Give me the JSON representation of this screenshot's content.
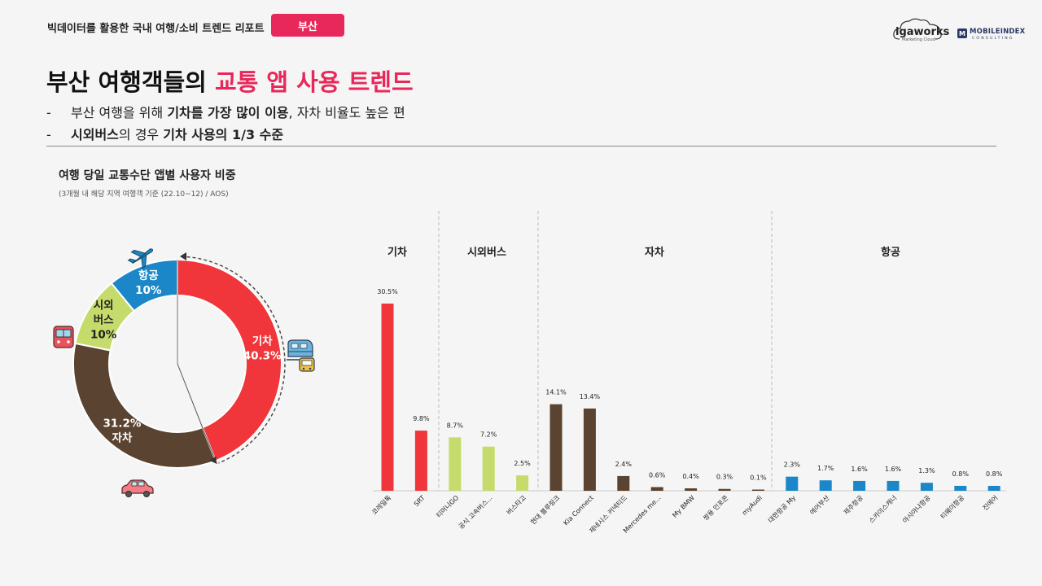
{
  "header": {
    "report_title": "빅데이터를 활용한 국내 여행/소비 트렌드 리포트",
    "city_badge": "부산",
    "logo_igaworks": "igaworks",
    "logo_igaworks_sub": "Marketing Cloud",
    "logo_mobileindex": "MOBILEINDEX",
    "logo_mobileindex_mark": "M",
    "logo_mobileindex_sub": "CONSULTING"
  },
  "headline": {
    "part1": "부산 여행객들의 ",
    "highlight": "교통 앱 사용 트렌드"
  },
  "bullets": [
    {
      "dash": "-",
      "t1": "부산 여행을 위해 ",
      "b1": "기차를 가장 많이 이용",
      "t2": ", 자차 비율도 높은 편",
      "b2": ""
    },
    {
      "dash": "-",
      "t1": "",
      "b1": "시외버스",
      "t2": "의 경우 ",
      "b2": "기차 사용의 1/3 수준"
    }
  ],
  "chart_title": "여행 당일 교통수단 앱별 사용자 비중",
  "chart_subtitle": "(3개월 내 해당 지역 여행객 기준 (22.10~12) / AOS)",
  "colors": {
    "train": "#f0363a",
    "bus": "#c5db6b",
    "car": "#5a4330",
    "air": "#1b87c8",
    "accent": "#e8285a"
  },
  "chart_data": [
    {
      "type": "pie",
      "variant": "donut",
      "slices": [
        {
          "label_lines": [
            "기차"
          ],
          "pct": "40.3%",
          "value": 40.3,
          "color_key": "train",
          "icon": "train-icon",
          "label_color": "#ffffff"
        },
        {
          "label_lines": [],
          "pct": "31.2%",
          "label_after": "자차",
          "value": 31.2,
          "color_key": "car",
          "icon": "car-icon",
          "label_color": "#ffffff"
        },
        {
          "label_lines": [
            "시외",
            "버스"
          ],
          "pct": "10%",
          "value": 10,
          "color_key": "bus",
          "icon": "bus-icon",
          "label_color": "#222222"
        },
        {
          "label_lines": [
            "항공"
          ],
          "pct": "10%",
          "value": 10,
          "color_key": "air",
          "icon": "airplane-icon",
          "label_color": "#ffffff"
        }
      ]
    },
    {
      "type": "bar",
      "ylim": [
        0,
        32
      ],
      "groups": [
        {
          "name": "기차",
          "color_key": "train",
          "count": 2
        },
        {
          "name": "시외버스",
          "color_key": "bus",
          "count": 3
        },
        {
          "name": "자차",
          "color_key": "car",
          "count": 7
        },
        {
          "name": "항공",
          "color_key": "air",
          "count": 7
        }
      ],
      "categories": [
        "코레일톡",
        "SRT",
        "티머니GO",
        "공식 고속버스...",
        "버스타고",
        "현대 블루링크",
        "Kia Connect",
        "제네시스 커넥티드",
        "Mercedes me...",
        "My BMW",
        "쌍용 인포콘",
        "myAudi",
        "대한항공 My",
        "에어부산",
        "제주항공",
        "스카이스캐너",
        "아시아나항공",
        "티웨이항공",
        "진에어"
      ],
      "values": [
        30.5,
        9.8,
        8.7,
        7.2,
        2.5,
        14.1,
        13.4,
        2.4,
        0.6,
        0.4,
        0.3,
        0.1,
        2.3,
        1.7,
        1.6,
        1.6,
        1.3,
        0.8,
        0.8
      ],
      "value_labels": [
        "30.5%",
        "9.8%",
        "8.7%",
        "7.2%",
        "2.5%",
        "14.1%",
        "13.4%",
        "2.4%",
        "0.6%",
        "0.4%",
        "0.3%",
        "0.1%",
        "2.3%",
        "1.7%",
        "1.6%",
        "1.6%",
        "1.3%",
        "0.8%",
        "0.8%"
      ]
    }
  ]
}
